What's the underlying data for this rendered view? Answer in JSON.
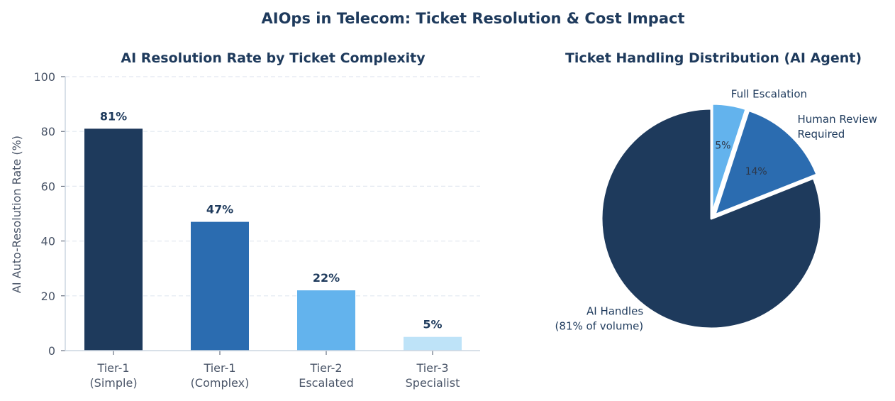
{
  "title": "AIOps in Telecom: Ticket Resolution & Cost Impact",
  "colors": {
    "title": "#1e3a5c",
    "text": "#4a5568",
    "grid": "#e2e8f0",
    "slices": [
      "#1e3a5c",
      "#2b6cb0",
      "#63b3ed"
    ],
    "bars": [
      "#1e3a5c",
      "#2b6cb0",
      "#63b3ed",
      "#bee3f8"
    ]
  },
  "chart_data": [
    {
      "type": "bar",
      "title": "AI Resolution Rate by Ticket Complexity",
      "xlabel": "",
      "ylabel": "AI Auto-Resolution Rate (%)",
      "categories": [
        [
          "Tier-1",
          "(Simple)"
        ],
        [
          "Tier-1",
          "(Complex)"
        ],
        [
          "Tier-2",
          "Escalated"
        ],
        [
          "Tier-3",
          "Specialist"
        ]
      ],
      "values": [
        81,
        47,
        22,
        5
      ],
      "value_labels": [
        "81%",
        "47%",
        "22%",
        "5%"
      ],
      "ylim": [
        0,
        100
      ],
      "yticks": [
        0,
        20,
        40,
        60,
        80,
        100
      ],
      "grid": true
    },
    {
      "type": "pie",
      "title": "Ticket Handling Distribution (AI Agent)",
      "labels": [
        [
          "AI Handles",
          "(81% of volume)"
        ],
        [
          "Human Review",
          "Required"
        ],
        [
          "Full Escalation"
        ]
      ],
      "values": [
        81,
        14,
        5
      ],
      "pct_labels": [
        "",
        "14%",
        "5%"
      ],
      "exploded": [
        false,
        true,
        true
      ]
    }
  ]
}
